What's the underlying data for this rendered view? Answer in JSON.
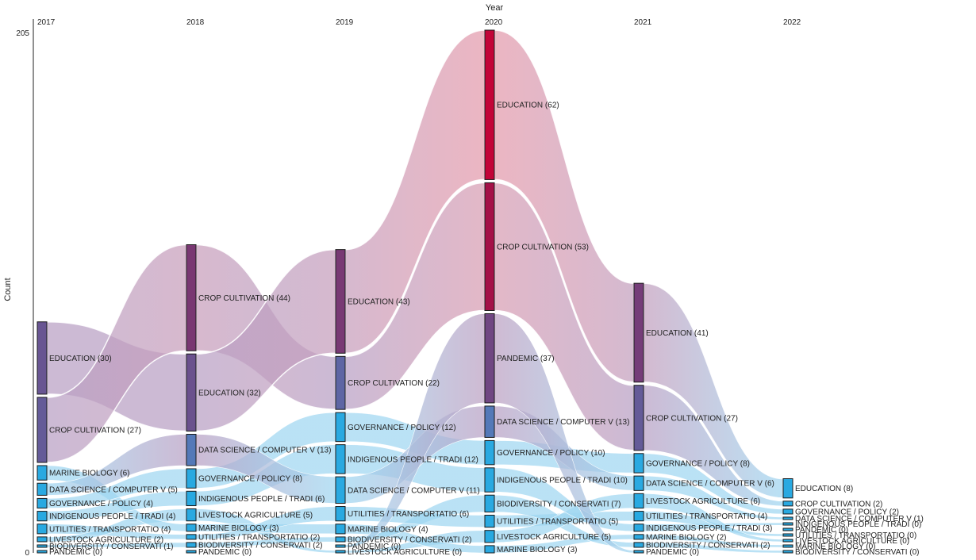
{
  "chart_data": {
    "type": "alluvial",
    "title": "Year",
    "ylabel": "Count",
    "y_axis_ticks": [
      "205",
      "0"
    ],
    "years": [
      "2017",
      "2018",
      "2019",
      "2020",
      "2021",
      "2022"
    ],
    "topics": [
      "EDUCATION",
      "CROP CULTIVATION",
      "PANDEMIC",
      "MARINE BIOLOGY",
      "DATA SCIENCE / COMPUTER V",
      "GOVERNANCE / POLICY",
      "INDIGENOUS PEOPLE / TRADI",
      "UTILITIES / TRANSPORTATIO",
      "LIVESTOCK AGRICULTURE",
      "BIODIVERSITY / CONSERVATI"
    ],
    "columns": [
      {
        "year": "2017",
        "nodes": [
          {
            "topic": "EDUCATION",
            "value": 30,
            "label": "EDUCATION (30)"
          },
          {
            "topic": "CROP CULTIVATION",
            "value": 27,
            "label": "CROP CULTIVATION (27)"
          },
          {
            "topic": "MARINE BIOLOGY",
            "value": 6,
            "label": "MARINE BIOLOGY (6)"
          },
          {
            "topic": "DATA SCIENCE / COMPUTER V",
            "value": 5,
            "label": "DATA SCIENCE / COMPUTER V (5)"
          },
          {
            "topic": "GOVERNANCE / POLICY",
            "value": 4,
            "label": "GOVERNANCE / POLICY (4)"
          },
          {
            "topic": "INDIGENOUS PEOPLE / TRADI",
            "value": 4,
            "label": "INDIGENOUS PEOPLE / TRADI (4)"
          },
          {
            "topic": "UTILITIES / TRANSPORTATIO",
            "value": 4,
            "label": "UTILITIES / TRANSPORTATIO (4)"
          },
          {
            "topic": "LIVESTOCK AGRICULTURE",
            "value": 2,
            "label": "LIVESTOCK AGRICULTURE (2)"
          },
          {
            "topic": "BIODIVERSITY / CONSERVATI",
            "value": 1,
            "label": "BIODIVERSITY / CONSERVATI (1)"
          },
          {
            "topic": "PANDEMIC",
            "value": 0,
            "label": "PANDEMIC (0)"
          }
        ]
      },
      {
        "year": "2018",
        "nodes": [
          {
            "topic": "CROP CULTIVATION",
            "value": 44,
            "label": "CROP CULTIVATION (44)"
          },
          {
            "topic": "EDUCATION",
            "value": 32,
            "label": "EDUCATION (32)"
          },
          {
            "topic": "DATA SCIENCE / COMPUTER V",
            "value": 13,
            "label": "DATA SCIENCE / COMPUTER V (13)"
          },
          {
            "topic": "GOVERNANCE / POLICY",
            "value": 8,
            "label": "GOVERNANCE / POLICY (8)"
          },
          {
            "topic": "INDIGENOUS PEOPLE / TRADI",
            "value": 6,
            "label": "INDIGENOUS PEOPLE / TRADI (6)"
          },
          {
            "topic": "LIVESTOCK AGRICULTURE",
            "value": 5,
            "label": "LIVESTOCK AGRICULTURE (5)"
          },
          {
            "topic": "MARINE BIOLOGY",
            "value": 3,
            "label": "MARINE BIOLOGY (3)"
          },
          {
            "topic": "UTILITIES / TRANSPORTATIO",
            "value": 2,
            "label": "UTILITIES / TRANSPORTATIO (2)"
          },
          {
            "topic": "BIODIVERSITY / CONSERVATI",
            "value": 2,
            "label": "BIODIVERSITY / CONSERVATI (2)"
          },
          {
            "topic": "PANDEMIC",
            "value": 0,
            "label": "PANDEMIC (0)"
          }
        ]
      },
      {
        "year": "2019",
        "nodes": [
          {
            "topic": "EDUCATION",
            "value": 43,
            "label": "EDUCATION (43)"
          },
          {
            "topic": "CROP CULTIVATION",
            "value": 22,
            "label": "CROP CULTIVATION (22)"
          },
          {
            "topic": "GOVERNANCE / POLICY",
            "value": 12,
            "label": "GOVERNANCE / POLICY (12)"
          },
          {
            "topic": "INDIGENOUS PEOPLE / TRADI",
            "value": 12,
            "label": "INDIGENOUS PEOPLE / TRADI (12)"
          },
          {
            "topic": "DATA SCIENCE / COMPUTER V",
            "value": 11,
            "label": "DATA SCIENCE / COMPUTER V (11)"
          },
          {
            "topic": "UTILITIES / TRANSPORTATIO",
            "value": 6,
            "label": "UTILITIES / TRANSPORTATIO (6)"
          },
          {
            "topic": "MARINE BIOLOGY",
            "value": 4,
            "label": "MARINE BIOLOGY (4)"
          },
          {
            "topic": "BIODIVERSITY / CONSERVATI",
            "value": 2,
            "label": "BIODIVERSITY / CONSERVATI (2)"
          },
          {
            "topic": "PANDEMIC",
            "value": 0,
            "label": "PANDEMIC (0)"
          },
          {
            "topic": "LIVESTOCK AGRICULTURE",
            "value": 0,
            "label": "LIVESTOCK AGRICULTURE (0)"
          }
        ]
      },
      {
        "year": "2020",
        "nodes": [
          {
            "topic": "EDUCATION",
            "value": 62,
            "label": "EDUCATION (62)"
          },
          {
            "topic": "CROP CULTIVATION",
            "value": 53,
            "label": "CROP CULTIVATION (53)"
          },
          {
            "topic": "PANDEMIC",
            "value": 37,
            "label": "PANDEMIC (37)"
          },
          {
            "topic": "DATA SCIENCE / COMPUTER V",
            "value": 13,
            "label": "DATA SCIENCE / COMPUTER V (13)"
          },
          {
            "topic": "GOVERNANCE / POLICY",
            "value": 10,
            "label": "GOVERNANCE / POLICY (10)"
          },
          {
            "topic": "INDIGENOUS PEOPLE / TRADI",
            "value": 10,
            "label": "INDIGENOUS PEOPLE / TRADI (10)"
          },
          {
            "topic": "BIODIVERSITY / CONSERVATI",
            "value": 7,
            "label": "BIODIVERSITY / CONSERVATI (7)"
          },
          {
            "topic": "UTILITIES / TRANSPORTATIO",
            "value": 5,
            "label": "UTILITIES / TRANSPORTATIO (5)"
          },
          {
            "topic": "LIVESTOCK AGRICULTURE",
            "value": 5,
            "label": "LIVESTOCK AGRICULTURE (5)"
          },
          {
            "topic": "MARINE BIOLOGY",
            "value": 3,
            "label": "MARINE BIOLOGY (3)"
          }
        ]
      },
      {
        "year": "2021",
        "nodes": [
          {
            "topic": "EDUCATION",
            "value": 41,
            "label": "EDUCATION (41)"
          },
          {
            "topic": "CROP CULTIVATION",
            "value": 27,
            "label": "CROP CULTIVATION (27)"
          },
          {
            "topic": "GOVERNANCE / POLICY",
            "value": 8,
            "label": "GOVERNANCE / POLICY (8)"
          },
          {
            "topic": "DATA SCIENCE / COMPUTER V",
            "value": 6,
            "label": "DATA SCIENCE / COMPUTER V (6)"
          },
          {
            "topic": "LIVESTOCK AGRICULTURE",
            "value": 6,
            "label": "LIVESTOCK AGRICULTURE (6)"
          },
          {
            "topic": "UTILITIES / TRANSPORTATIO",
            "value": 4,
            "label": "UTILITIES / TRANSPORTATIO (4)"
          },
          {
            "topic": "INDIGENOUS PEOPLE / TRADI",
            "value": 3,
            "label": "INDIGENOUS PEOPLE / TRADI (3)"
          },
          {
            "topic": "MARINE BIOLOGY",
            "value": 2,
            "label": "MARINE BIOLOGY (2)"
          },
          {
            "topic": "BIODIVERSITY / CONSERVATI",
            "value": 2,
            "label": "BIODIVERSITY / CONSERVATI (2)"
          },
          {
            "topic": "PANDEMIC",
            "value": 0,
            "label": "PANDEMIC (0)"
          }
        ]
      },
      {
        "year": "2022",
        "nodes": [
          {
            "topic": "EDUCATION",
            "value": 8,
            "label": "EDUCATION (8)"
          },
          {
            "topic": "CROP CULTIVATION",
            "value": 2,
            "label": "CROP CULTIVATION (2)"
          },
          {
            "topic": "GOVERNANCE / POLICY",
            "value": 2,
            "label": "GOVERNANCE / POLICY (2)"
          },
          {
            "topic": "DATA SCIENCE / COMPUTER V",
            "value": 1,
            "label": "DATA SCIENCE / COMPUTER V (1)"
          },
          {
            "topic": "INDIGENOUS PEOPLE / TRADI",
            "value": 0,
            "label": "INDIGENOUS PEOPLE / TRADI (0)"
          },
          {
            "topic": "PANDEMIC",
            "value": 0,
            "label": "PANDEMIC (0)"
          },
          {
            "topic": "UTILITIES / TRANSPORTATIO",
            "value": 0,
            "label": "UTILITIES / TRANSPORTATIO (0)"
          },
          {
            "topic": "LIVESTOCK AGRICULTURE",
            "value": 0,
            "label": "LIVESTOCK AGRICULTURE (0)"
          },
          {
            "topic": "MARINE BIOLOGY",
            "value": 0,
            "label": "MARINE BIOLOGY (0)"
          },
          {
            "topic": "BIODIVERSITY / CONSERVATI",
            "value": 0,
            "label": "BIODIVERSITY / CONSERVATI (0)"
          }
        ]
      }
    ],
    "colors": {
      "flow_low": "#9fd6f1",
      "flow_high": "#e49aab",
      "flow_mid": "#b8a0c4",
      "node_low": "#29a9e1",
      "node_mid": "#5c6aa8",
      "node_high": "#cc0033",
      "node_stroke": "#1a1a1a"
    }
  }
}
